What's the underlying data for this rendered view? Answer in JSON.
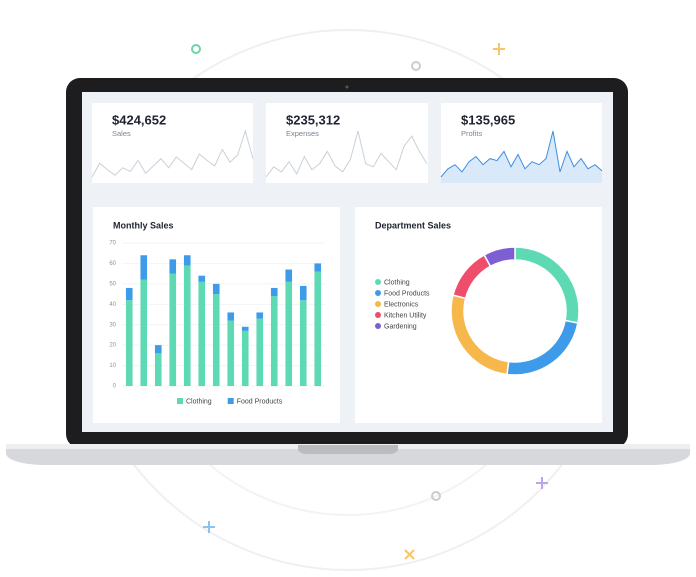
{
  "chart_data": [
    {
      "type": "sparkline",
      "title": "$424,652",
      "subtitle": "Sales",
      "color": "#c9d0d8",
      "fill": null,
      "values": [
        20,
        35,
        28,
        22,
        30,
        26,
        38,
        24,
        32,
        40,
        30,
        42,
        35,
        28,
        45,
        38,
        32,
        50,
        36,
        44,
        70,
        40
      ]
    },
    {
      "type": "sparkline",
      "title": "$235,312",
      "subtitle": "Expenses",
      "color": "#c9d0d8",
      "fill": null,
      "values": [
        25,
        35,
        30,
        40,
        28,
        45,
        32,
        38,
        50,
        36,
        30,
        42,
        70,
        38,
        35,
        48,
        40,
        32,
        55,
        65,
        50,
        38
      ]
    },
    {
      "type": "sparkline",
      "title": "$135,965",
      "subtitle": "Profits",
      "color": "#3d8fe0",
      "fill": "#cfe4f8",
      "values": [
        30,
        38,
        42,
        35,
        45,
        50,
        42,
        48,
        46,
        55,
        40,
        52,
        38,
        45,
        42,
        48,
        75,
        35,
        55,
        40,
        48,
        38,
        42,
        36
      ]
    },
    {
      "type": "stacked-bar",
      "title": "Monthly Sales",
      "categories": [
        null,
        null,
        null,
        null,
        null,
        null,
        null,
        null,
        null,
        null,
        null,
        null,
        null,
        null
      ],
      "series": [
        {
          "name": "Clothing",
          "color": "#5ddab4",
          "values": [
            42,
            52,
            16,
            55,
            59,
            51,
            45,
            32,
            27,
            33,
            44,
            51,
            42,
            56
          ]
        },
        {
          "name": "Food Products",
          "color": "#3d9be9",
          "values": [
            6,
            12,
            4,
            7,
            5,
            3,
            5,
            4,
            2,
            3,
            4,
            6,
            7,
            4
          ]
        }
      ],
      "ylim": [
        0,
        70
      ],
      "yticks": [
        0,
        10,
        20,
        30,
        40,
        50,
        60,
        70
      ],
      "grid": true
    },
    {
      "type": "donut",
      "title": "Department Sales",
      "categories": [
        "Clothing",
        "Food Products",
        "Electronics",
        "Kitchen Utility",
        "Gardening"
      ],
      "values": [
        28,
        24,
        27,
        13,
        8
      ],
      "colors": [
        "#5ddab4",
        "#3d9be9",
        "#f7b84b",
        "#ee4d6b",
        "#7d5fd3"
      ]
    }
  ]
}
